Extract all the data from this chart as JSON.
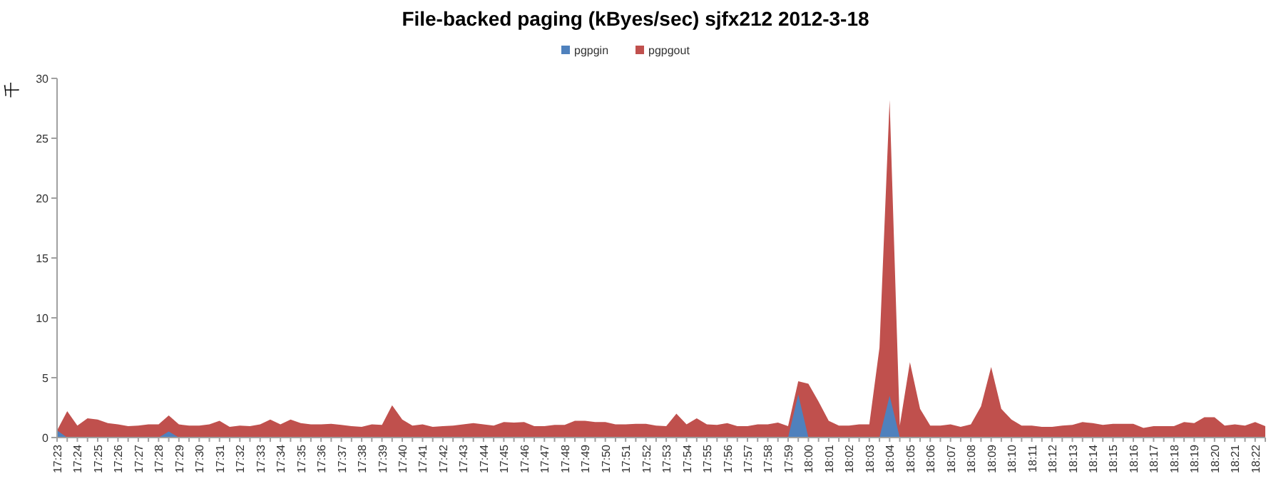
{
  "chart_data": {
    "type": "area",
    "title": "File-backed paging (kByes/sec) sjfx212 2012-3-18",
    "ylabel": "千",
    "legend": "top",
    "ylim": [
      0,
      30
    ],
    "yticks": [
      0,
      5,
      10,
      15,
      20,
      25,
      30
    ],
    "categories": [
      "17:23",
      null,
      "17:24",
      null,
      "17:25",
      null,
      "17:26",
      null,
      "17:27",
      null,
      "17:28",
      null,
      "17:29",
      null,
      "17:30",
      null,
      "17:31",
      null,
      "17:32",
      null,
      "17:33",
      null,
      "17:34",
      null,
      "17:35",
      null,
      "17:36",
      null,
      "17:37",
      null,
      "17:38",
      null,
      "17:39",
      null,
      "17:40",
      null,
      "17:41",
      null,
      "17:42",
      null,
      "17:43",
      null,
      "17:44",
      null,
      "17:45",
      null,
      "17:46",
      null,
      "17:47",
      null,
      "17:48",
      null,
      "17:49",
      null,
      "17:50",
      null,
      "17:51",
      null,
      "17:52",
      null,
      "17:53",
      null,
      "17:54",
      null,
      "17:55",
      null,
      "17:56",
      null,
      "17:57",
      null,
      "17:58",
      null,
      "17:59",
      null,
      "18:00",
      null,
      "18:01",
      null,
      "18:02",
      null,
      "18:03",
      null,
      "18:04",
      null,
      "18:05",
      null,
      "18:06",
      null,
      "18:07",
      null,
      "18:08",
      null,
      "18:09",
      null,
      "18:10",
      null,
      "18:11",
      null,
      "18:12",
      null,
      "18:13",
      null,
      "18:14",
      null,
      "18:15",
      null,
      "18:16",
      null,
      "18:17",
      null,
      "18:18",
      null,
      "18:19",
      null,
      "18:20",
      null,
      "18:21",
      null,
      "18:22",
      null
    ],
    "series": [
      {
        "name": "pgpgout",
        "color": "#c0504d",
        "values": [
          0.6,
          2.2,
          1.0,
          1.6,
          1.5,
          1.2,
          1.1,
          0.95,
          1.0,
          1.1,
          1.1,
          1.85,
          1.1,
          1.0,
          1.0,
          1.1,
          1.4,
          0.9,
          1.0,
          0.95,
          1.1,
          1.5,
          1.1,
          1.5,
          1.2,
          1.1,
          1.1,
          1.15,
          1.05,
          0.95,
          0.9,
          1.1,
          1.05,
          2.7,
          1.5,
          1.0,
          1.1,
          0.9,
          0.95,
          1.0,
          1.1,
          1.2,
          1.1,
          1.0,
          1.3,
          1.25,
          1.3,
          0.95,
          0.95,
          1.05,
          1.05,
          1.4,
          1.4,
          1.3,
          1.3,
          1.1,
          1.1,
          1.15,
          1.15,
          1.0,
          0.95,
          2.0,
          1.1,
          1.6,
          1.1,
          1.05,
          1.2,
          0.95,
          0.95,
          1.1,
          1.1,
          1.25,
          0.95,
          4.7,
          4.5,
          3.0,
          1.4,
          1.0,
          1.0,
          1.1,
          1.1,
          7.5,
          28.2,
          1.0,
          6.3,
          2.4,
          1.0,
          1.0,
          1.1,
          0.9,
          1.1,
          2.6,
          5.9,
          2.4,
          1.5,
          1.0,
          1.0,
          0.9,
          0.9,
          1.0,
          1.05,
          1.3,
          1.2,
          1.05,
          1.15,
          1.15,
          1.15,
          0.8,
          0.95,
          0.95,
          0.95,
          1.3,
          1.2,
          1.7,
          1.7,
          1.0,
          1.1,
          1.0,
          1.3,
          0.95
        ]
      },
      {
        "name": "pgpgin",
        "color": "#4f81bd",
        "values": [
          0.6,
          0,
          0,
          0,
          0,
          0,
          0,
          0,
          0,
          0,
          0,
          0.5,
          0,
          0,
          0,
          0,
          0,
          0,
          0,
          0,
          0,
          0,
          0,
          0,
          0,
          0,
          0,
          0,
          0,
          0,
          0,
          0,
          0,
          0,
          0,
          0,
          0,
          0,
          0,
          0,
          0,
          0,
          0,
          0,
          0,
          0,
          0,
          0,
          0,
          0,
          0,
          0,
          0,
          0,
          0,
          0,
          0,
          0,
          0,
          0,
          0,
          0,
          0,
          0,
          0,
          0,
          0,
          0,
          0,
          0,
          0,
          0,
          0,
          3.6,
          0,
          0,
          0,
          0,
          0,
          0,
          0,
          0,
          3.5,
          0,
          0,
          0,
          0,
          0,
          0,
          0,
          0,
          0,
          0,
          0,
          0,
          0,
          0,
          0,
          0,
          0,
          0,
          0,
          0,
          0,
          0,
          0,
          0,
          0,
          0,
          0,
          0,
          0,
          0,
          0,
          0,
          0,
          0,
          0,
          0,
          0
        ]
      }
    ]
  }
}
